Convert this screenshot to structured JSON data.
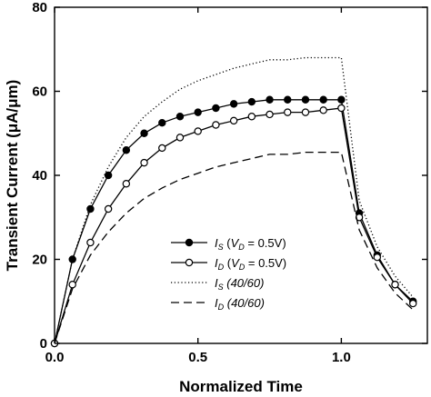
{
  "chart_data": {
    "type": "line",
    "xlabel": "Normalized Time",
    "ylabel": "Transient Current (μA/μm)",
    "xlim": [
      0.0,
      1.3
    ],
    "ylim": [
      0,
      80
    ],
    "xticks": [
      0.0,
      0.5,
      1.0
    ],
    "xtick_labels": [
      "0.0",
      "0.5",
      "1.0"
    ],
    "yticks": [
      0,
      20,
      40,
      60,
      80
    ],
    "ytick_labels": [
      "0",
      "20",
      "40",
      "60",
      "80"
    ],
    "grid": false,
    "legend_position": "center-left",
    "series": [
      {
        "name": "I_S (V_D = 0.5V)",
        "style": "solid-filled-markers",
        "color": "#000000",
        "x": [
          0.0,
          0.0625,
          0.125,
          0.1875,
          0.25,
          0.3125,
          0.375,
          0.4375,
          0.5,
          0.5625,
          0.625,
          0.6875,
          0.75,
          0.8125,
          0.875,
          0.9375,
          1.0,
          1.0625,
          1.125,
          1.1875,
          1.25
        ],
        "y": [
          0,
          20,
          32,
          40,
          46,
          50,
          52.5,
          54,
          55,
          56,
          57,
          57.5,
          58,
          58,
          58,
          58,
          58,
          31,
          21,
          14,
          10
        ]
      },
      {
        "name": "I_D (V_D = 0.5V)",
        "style": "solid-open-markers",
        "color": "#000000",
        "x": [
          0.0,
          0.0625,
          0.125,
          0.1875,
          0.25,
          0.3125,
          0.375,
          0.4375,
          0.5,
          0.5625,
          0.625,
          0.6875,
          0.75,
          0.8125,
          0.875,
          0.9375,
          1.0,
          1.0625,
          1.125,
          1.1875,
          1.25
        ],
        "y": [
          0,
          14,
          24,
          32,
          38,
          43,
          46.5,
          49,
          50.5,
          52,
          53,
          54,
          54.5,
          55,
          55,
          55.5,
          56,
          30,
          20.5,
          14,
          9.5
        ]
      },
      {
        "name": "I_S (40/60)",
        "style": "dotted",
        "color": "#000000",
        "x": [
          0.0,
          0.0625,
          0.125,
          0.1875,
          0.25,
          0.3125,
          0.375,
          0.4375,
          0.5,
          0.5625,
          0.625,
          0.6875,
          0.75,
          0.8125,
          0.875,
          0.9375,
          1.0,
          1.0625,
          1.125,
          1.1875,
          1.25
        ],
        "y": [
          0,
          20,
          33,
          42,
          49,
          54,
          57.5,
          60.5,
          62.5,
          64,
          65.5,
          66.5,
          67.5,
          67.5,
          68,
          68,
          68,
          34,
          23,
          16,
          11
        ]
      },
      {
        "name": "I_D (40/60)",
        "style": "dashed",
        "color": "#000000",
        "x": [
          0.0,
          0.0625,
          0.125,
          0.1875,
          0.25,
          0.3125,
          0.375,
          0.4375,
          0.5,
          0.5625,
          0.625,
          0.6875,
          0.75,
          0.8125,
          0.875,
          0.9375,
          1.0,
          1.0625,
          1.125,
          1.1875,
          1.25
        ],
        "y": [
          0,
          13,
          21,
          26.5,
          31,
          34.5,
          37,
          39,
          40.5,
          42,
          43,
          44,
          45,
          45,
          45.5,
          45.5,
          45.5,
          27,
          18,
          12,
          8
        ]
      }
    ],
    "legend": [
      {
        "main": "I",
        "sub": "S",
        "rest_open": " (",
        "v": "V",
        "vsub": "D",
        "rest_close": " = 0.5V)"
      },
      {
        "main": "I",
        "sub": "D",
        "rest_open": " (",
        "v": "V",
        "vsub": "D",
        "rest_close": " = 0.5V)"
      },
      {
        "main": "I",
        "sub": "S",
        "rest_open": " (40/60)",
        "v": "",
        "vsub": "",
        "rest_close": ""
      },
      {
        "main": "I",
        "sub": "D",
        "rest_open": " (40/60)",
        "v": "",
        "vsub": "",
        "rest_close": ""
      }
    ]
  }
}
